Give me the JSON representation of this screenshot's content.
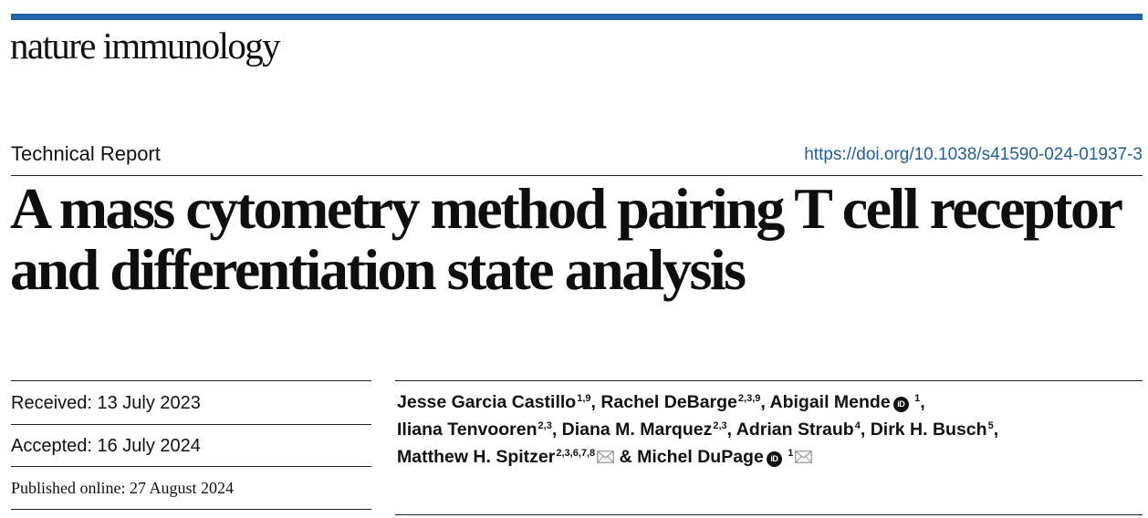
{
  "journal": {
    "name": "nature immunology"
  },
  "article": {
    "type": "Technical Report",
    "doi": "https://doi.org/10.1038/s41590-024-01937-3",
    "title": "A mass cytometry method pairing T cell receptor and differentiation state analysis"
  },
  "dates": {
    "received": "Received: 13 July 2023",
    "accepted": "Accepted: 16 July 2024",
    "published": "Published online: 27 August 2024"
  },
  "authors": [
    {
      "name": "Jesse Garcia Castillo",
      "affil": "1,9"
    },
    {
      "name": "Rachel DeBarge",
      "affil": "2,3,9"
    },
    {
      "name": "Abigail Mende",
      "affil": "1",
      "orcid": true
    },
    {
      "name": "Iliana Tenvooren",
      "affil": "2,3"
    },
    {
      "name": "Diana M. Marquez",
      "affil": "2,3"
    },
    {
      "name": "Adrian Straub",
      "affil": "4"
    },
    {
      "name": "Dirk H. Busch",
      "affil": "5"
    },
    {
      "name": "Matthew H. Spitzer",
      "affil": "2,3,6,7,8",
      "email": true
    },
    {
      "name": "Michel DuPage",
      "affil": "1",
      "orcid": true,
      "email": true
    }
  ],
  "icons": {
    "orcid": "orcid-icon",
    "email": "envelope-icon",
    "orcid_glyph": "iD"
  },
  "colors": {
    "accent_bar": "#1f64a8",
    "link": "#1f5f9b"
  }
}
